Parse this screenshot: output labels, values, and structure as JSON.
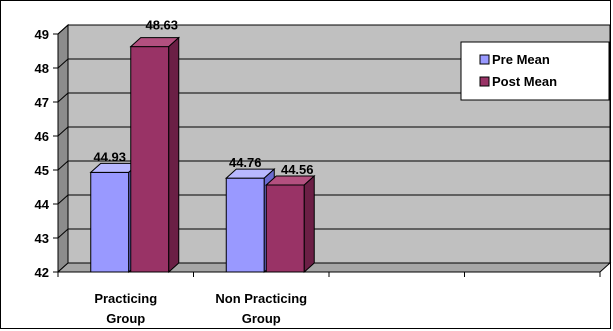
{
  "chart_data": {
    "type": "bar",
    "categories": [
      "Practicing Group",
      "Non Practicing Group"
    ],
    "category_lines": [
      [
        "Practicing",
        "Group"
      ],
      [
        "Non Practicing",
        "Group"
      ]
    ],
    "series": [
      {
        "name": "Pre Mean",
        "values": [
          44.93,
          44.76
        ],
        "color": "#9999ff",
        "side": "#6b6bd0",
        "top": "#b8b8ff"
      },
      {
        "name": "Post Mean",
        "values": [
          48.63,
          44.56
        ],
        "color": "#993366",
        "side": "#6b1f45",
        "top": "#b3507f"
      }
    ],
    "data_labels": [
      [
        "44.93",
        "44.76"
      ],
      [
        "48.63",
        "44.56"
      ]
    ],
    "yticks": [
      "42",
      "43",
      "44",
      "45",
      "46",
      "47",
      "48",
      "49"
    ],
    "ylim": [
      42,
      49
    ],
    "grid": true,
    "three_d": true,
    "legend_position": "top-right",
    "wall_color": "#c0c0c0",
    "floor_color": "#a6a6a6",
    "title": "",
    "xlabel": "",
    "ylabel": ""
  }
}
